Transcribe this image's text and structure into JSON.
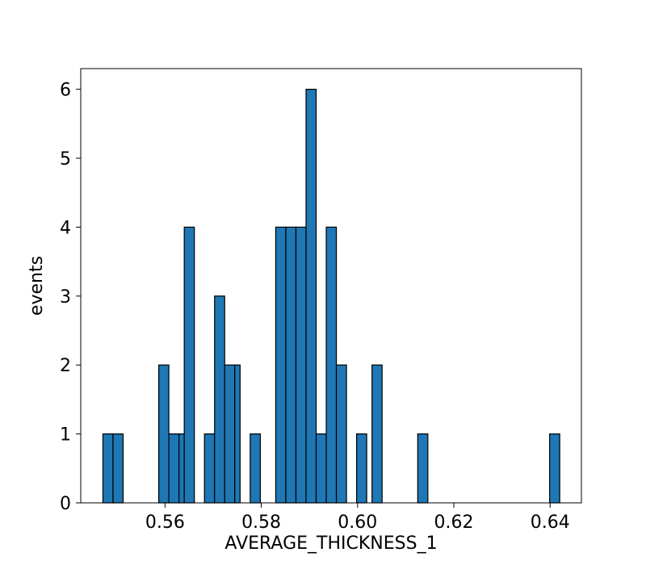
{
  "chart_data": {
    "type": "bar",
    "title": "",
    "xlabel": "AVERAGE_THICKNESS_1",
    "ylabel": "events",
    "xlim": [
      0.5425,
      0.6465
    ],
    "ylim": [
      0,
      6.3
    ],
    "grid": false,
    "bar_color": "#1f77b4",
    "edge_color": "#000000",
    "x_ticks": [
      0.56,
      0.58,
      0.6,
      0.62,
      0.64
    ],
    "x_tick_labels": [
      "0.56",
      "0.58",
      "0.60",
      "0.62",
      "0.64"
    ],
    "y_ticks": [
      0,
      1,
      2,
      3,
      4,
      5,
      6
    ],
    "y_tick_labels": [
      "0",
      "1",
      "2",
      "3",
      "4",
      "5",
      "6"
    ],
    "bins": [
      {
        "x0": 0.5471,
        "x1": 0.5492,
        "count": 1
      },
      {
        "x0": 0.5492,
        "x1": 0.5513,
        "count": 1
      },
      {
        "x0": 0.5587,
        "x1": 0.5608,
        "count": 2
      },
      {
        "x0": 0.5608,
        "x1": 0.5629,
        "count": 1
      },
      {
        "x0": 0.5629,
        "x1": 0.564,
        "count": 1
      },
      {
        "x0": 0.564,
        "x1": 0.5661,
        "count": 4
      },
      {
        "x0": 0.5682,
        "x1": 0.5703,
        "count": 1
      },
      {
        "x0": 0.5703,
        "x1": 0.5724,
        "count": 3
      },
      {
        "x0": 0.5724,
        "x1": 0.5745,
        "count": 2
      },
      {
        "x0": 0.5745,
        "x1": 0.5756,
        "count": 2
      },
      {
        "x0": 0.5777,
        "x1": 0.5798,
        "count": 1
      },
      {
        "x0": 0.583,
        "x1": 0.5851,
        "count": 4
      },
      {
        "x0": 0.5851,
        "x1": 0.5872,
        "count": 4
      },
      {
        "x0": 0.5872,
        "x1": 0.5893,
        "count": 4
      },
      {
        "x0": 0.5893,
        "x1": 0.5914,
        "count": 6
      },
      {
        "x0": 0.5914,
        "x1": 0.5935,
        "count": 1
      },
      {
        "x0": 0.5935,
        "x1": 0.5956,
        "count": 4
      },
      {
        "x0": 0.5956,
        "x1": 0.5977,
        "count": 2
      },
      {
        "x0": 0.5998,
        "x1": 0.6019,
        "count": 1
      },
      {
        "x0": 0.603,
        "x1": 0.6051,
        "count": 2
      },
      {
        "x0": 0.6125,
        "x1": 0.6146,
        "count": 1
      },
      {
        "x0": 0.6399,
        "x1": 0.642,
        "count": 1
      }
    ]
  }
}
